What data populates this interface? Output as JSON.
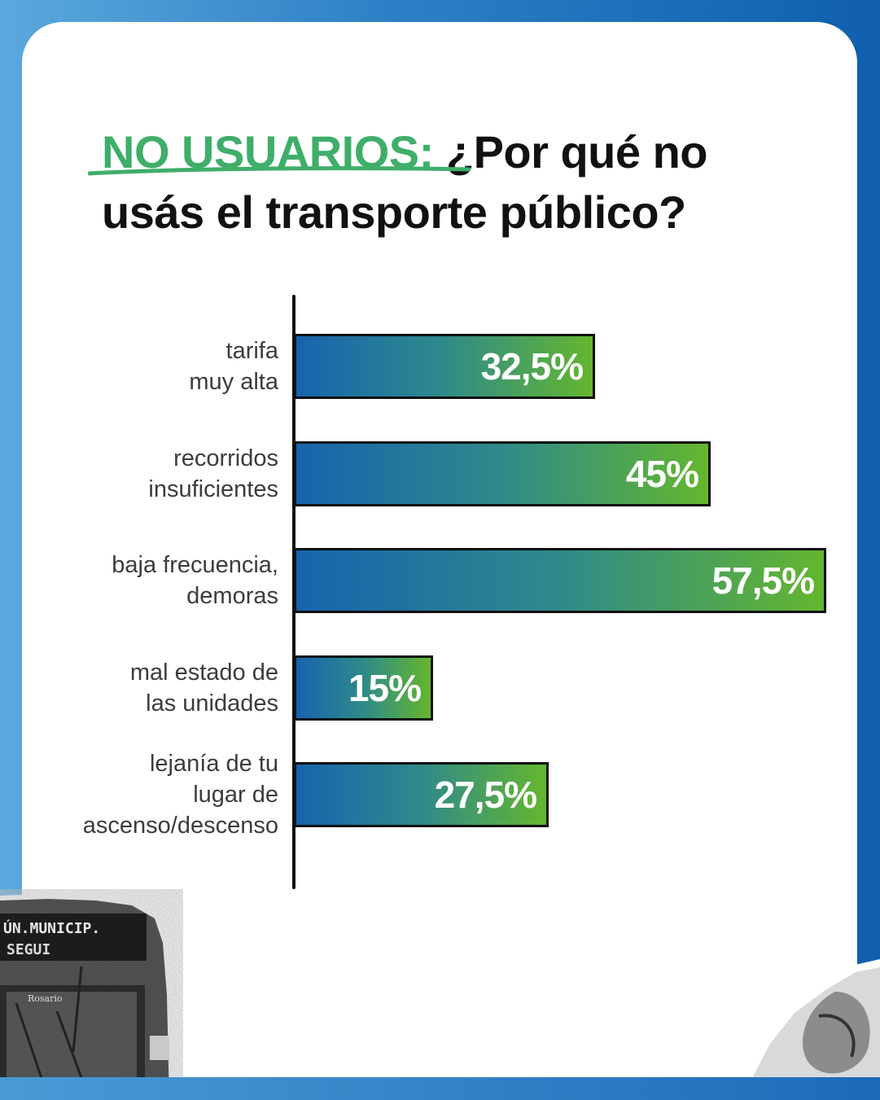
{
  "title": {
    "highlight": "NO USUARIOS:",
    "rest": " ¿Por qué no usás el transporte público?"
  },
  "colors": {
    "highlight": "#3fae6a",
    "bar_start": "#1763ae",
    "bar_end": "#64b62e",
    "frame": "#2d7fc6"
  },
  "decor": {
    "bus_sign": "ÚN.MUNICIP. SEGUI",
    "bus_text": "Rosario"
  },
  "chart_data": {
    "type": "bar",
    "orientation": "horizontal",
    "categories": [
      "tarifa\nmuy alta",
      "recorridos\ninsuficientes",
      "baja frecuencia,\ndemoras",
      "mal estado de\nlas unidades",
      "lejanía de tu\nlugar de\nascenso/descenso"
    ],
    "values": [
      32.5,
      45,
      57.5,
      15,
      27.5
    ],
    "value_labels": [
      "32,5%",
      "45%",
      "57,5%",
      "15%",
      "27,5%"
    ],
    "unit": "%",
    "xlim": [
      0,
      60
    ],
    "grid": false,
    "legend": "none"
  }
}
